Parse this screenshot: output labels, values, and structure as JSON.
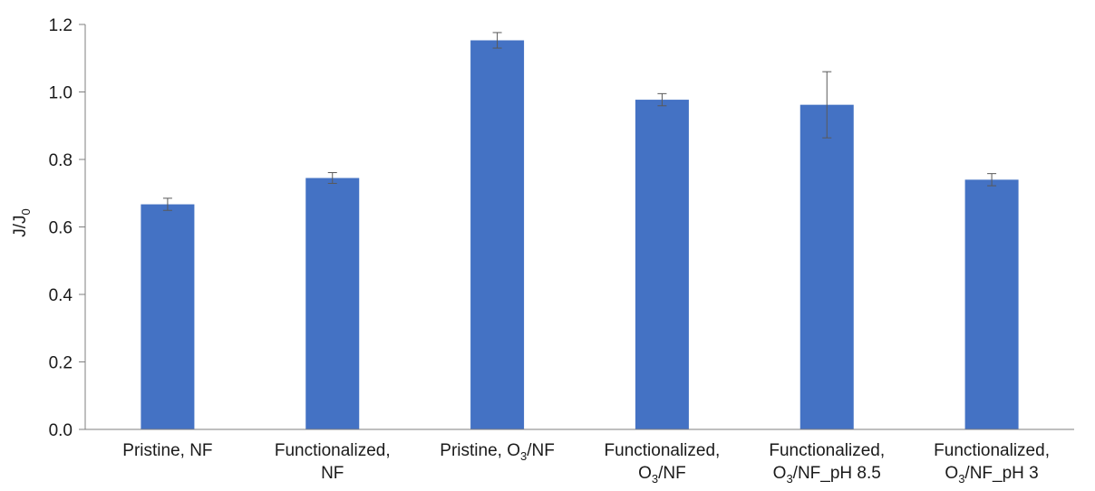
{
  "chart_data": {
    "type": "bar",
    "title": "",
    "xlabel": "",
    "ylabel": {
      "base": "J/J",
      "sub": "0"
    },
    "ylim": [
      0,
      1.2
    ],
    "yticks": [
      "0.0",
      "0.2",
      "0.4",
      "0.6",
      "0.8",
      "1.0",
      "1.2"
    ],
    "ytick_values": [
      0,
      0.2,
      0.4,
      0.6,
      0.8,
      1.0,
      1.2
    ],
    "grid": false,
    "legend": "none",
    "bar_color": "#4472C4",
    "categories": [
      {
        "lines": [
          [
            {
              "t": "Pristine, NF"
            }
          ]
        ]
      },
      {
        "lines": [
          [
            {
              "t": "Functionalized,"
            }
          ],
          [
            {
              "t": "NF"
            }
          ]
        ]
      },
      {
        "lines": [
          [
            {
              "t": "Pristine, O"
            },
            {
              "t": "3",
              "sub": true
            },
            {
              "t": "/NF"
            }
          ]
        ]
      },
      {
        "lines": [
          [
            {
              "t": "Functionalized,"
            }
          ],
          [
            {
              "t": "O"
            },
            {
              "t": "3",
              "sub": true
            },
            {
              "t": "/NF"
            }
          ]
        ]
      },
      {
        "lines": [
          [
            {
              "t": "Functionalized,"
            }
          ],
          [
            {
              "t": "O"
            },
            {
              "t": "3",
              "sub": true
            },
            {
              "t": "/NF_pH 8.5"
            }
          ]
        ]
      },
      {
        "lines": [
          [
            {
              "t": "Functionalized,"
            }
          ],
          [
            {
              "t": "O"
            },
            {
              "t": "3",
              "sub": true
            },
            {
              "t": "/NF_pH 3"
            }
          ]
        ]
      }
    ],
    "values": [
      0.667,
      0.745,
      1.153,
      0.977,
      0.962,
      0.74
    ],
    "errors": [
      0.018,
      0.016,
      0.023,
      0.018,
      0.098,
      0.018
    ]
  }
}
